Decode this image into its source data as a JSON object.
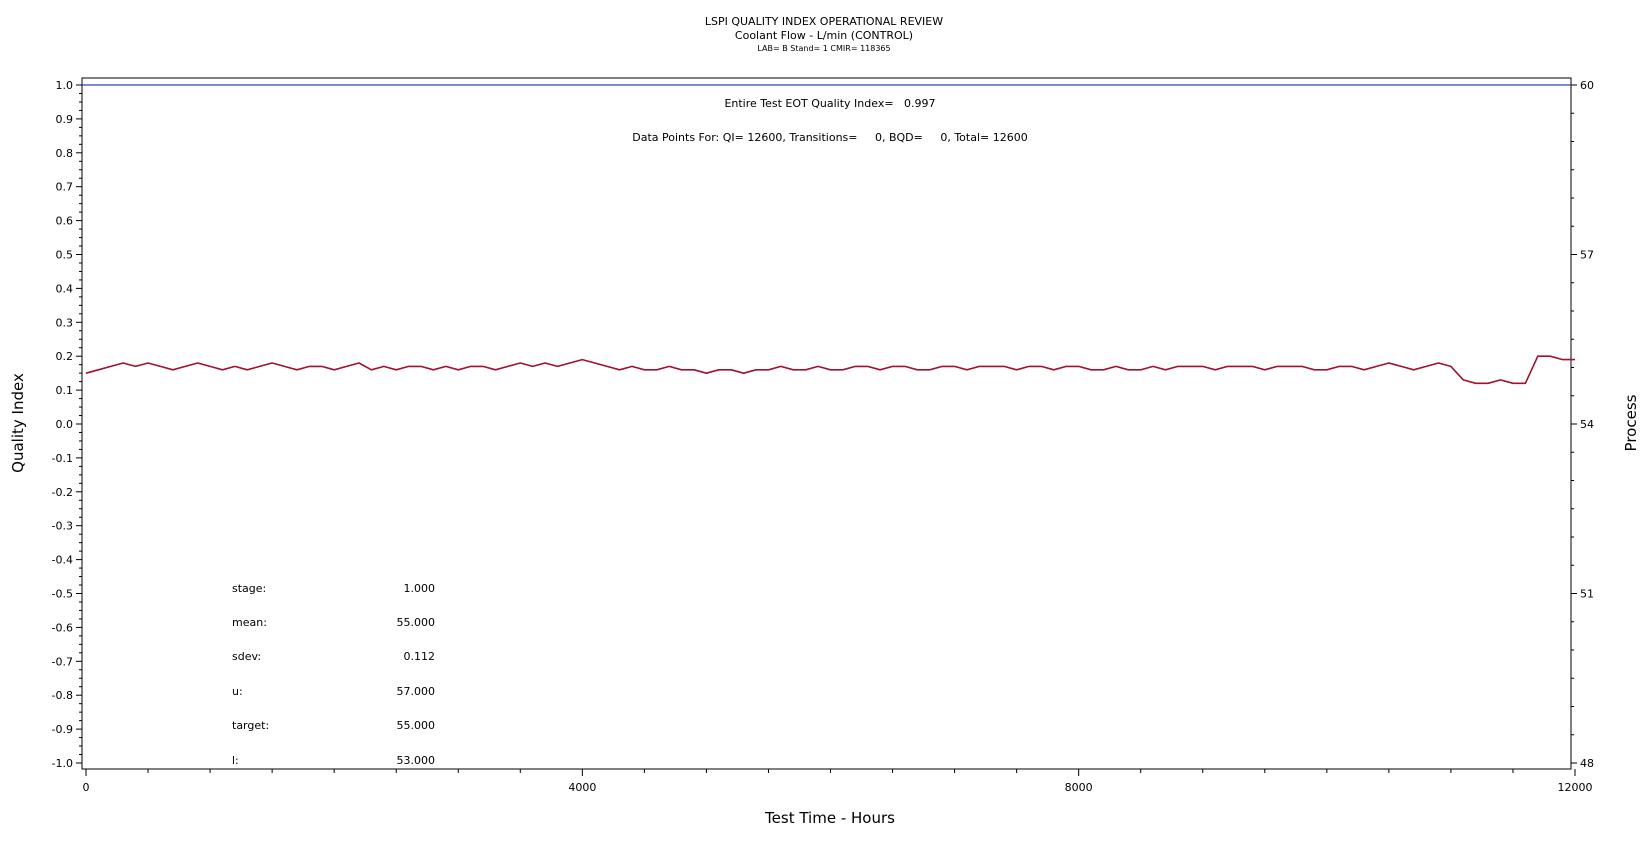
{
  "header": {
    "title": "LSPI QUALITY INDEX OPERATIONAL REVIEW",
    "subtitle": "Coolant Flow - L/min (CONTROL)",
    "info": "LAB= B Stand= 1 CMIR= 118365"
  },
  "annotations": {
    "quality_index": "Entire Test EOT Quality Index=   0.997",
    "data_points": "Data Points For: QI= 12600, Transitions=     0, BQD=     0, Total= 12600"
  },
  "stats": [
    {
      "label": "stage:",
      "value": "1.000"
    },
    {
      "label": "mean:",
      "value": "55.000"
    },
    {
      "label": "sdev:",
      "value": "0.112"
    },
    {
      "label": "u:",
      "value": "57.000"
    },
    {
      "label": "target:",
      "value": "55.000"
    },
    {
      "label": "l:",
      "value": "53.000"
    }
  ],
  "chart_data": {
    "type": "line",
    "xlabel": "Test Time - Hours",
    "ylabel": "Quality Index",
    "y2label": "Process",
    "xlim": [
      0,
      12000
    ],
    "ylim": [
      -1.0,
      1.0
    ],
    "y2lim": [
      48,
      60
    ],
    "xticks": [
      "0",
      "4000",
      "8000",
      "12000"
    ],
    "yticks": [
      "1.0",
      "0.9",
      "0.8",
      "0.7",
      "0.6",
      "0.5",
      "0.4",
      "0.3",
      "0.2",
      "0.1",
      "0.0",
      "-0.1",
      "-0.2",
      "-0.3",
      "-0.4",
      "-0.5",
      "-0.6",
      "-0.7",
      "-0.8",
      "-0.9",
      "-1.0"
    ],
    "y2ticks": [
      "60",
      "57",
      "54",
      "51",
      "48"
    ],
    "reference_line": {
      "y": 1.0,
      "color": "#3344aa"
    },
    "series": [
      {
        "color": "#a0122e",
        "x": [
          0,
          100,
          200,
          300,
          400,
          500,
          600,
          700,
          800,
          900,
          1000,
          1100,
          1200,
          1300,
          1400,
          1500,
          1600,
          1700,
          1800,
          1900,
          2000,
          2100,
          2200,
          2300,
          2400,
          2500,
          2600,
          2700,
          2800,
          2900,
          3000,
          3100,
          3200,
          3300,
          3400,
          3500,
          3600,
          3700,
          3800,
          3900,
          4000,
          4100,
          4200,
          4300,
          4400,
          4500,
          4600,
          4700,
          4800,
          4900,
          5000,
          5100,
          5200,
          5300,
          5400,
          5500,
          5600,
          5700,
          5800,
          5900,
          6000,
          6100,
          6200,
          6300,
          6400,
          6500,
          6600,
          6700,
          6800,
          6900,
          7000,
          7100,
          7200,
          7300,
          7400,
          7500,
          7600,
          7700,
          7800,
          7900,
          8000,
          8100,
          8200,
          8300,
          8400,
          8500,
          8600,
          8700,
          8800,
          8900,
          9000,
          9100,
          9200,
          9300,
          9400,
          9500,
          9600,
          9700,
          9800,
          9900,
          10000,
          10100,
          10200,
          10300,
          10400,
          10500,
          10600,
          10700,
          10800,
          10900,
          11000,
          11100,
          11200,
          11300,
          11400,
          11500,
          11600,
          11700,
          11800,
          11900,
          12000
        ],
        "y": [
          0.15,
          0.16,
          0.17,
          0.18,
          0.17,
          0.18,
          0.17,
          0.16,
          0.17,
          0.18,
          0.17,
          0.16,
          0.17,
          0.16,
          0.17,
          0.18,
          0.17,
          0.16,
          0.17,
          0.17,
          0.16,
          0.17,
          0.18,
          0.16,
          0.17,
          0.16,
          0.17,
          0.17,
          0.16,
          0.17,
          0.16,
          0.17,
          0.17,
          0.16,
          0.17,
          0.18,
          0.17,
          0.18,
          0.17,
          0.18,
          0.19,
          0.18,
          0.17,
          0.16,
          0.17,
          0.16,
          0.16,
          0.17,
          0.16,
          0.16,
          0.15,
          0.16,
          0.16,
          0.15,
          0.16,
          0.16,
          0.17,
          0.16,
          0.16,
          0.17,
          0.16,
          0.16,
          0.17,
          0.17,
          0.16,
          0.17,
          0.17,
          0.16,
          0.16,
          0.17,
          0.17,
          0.16,
          0.17,
          0.17,
          0.17,
          0.16,
          0.17,
          0.17,
          0.16,
          0.17,
          0.17,
          0.16,
          0.16,
          0.17,
          0.16,
          0.16,
          0.17,
          0.16,
          0.17,
          0.17,
          0.17,
          0.16,
          0.17,
          0.17,
          0.17,
          0.16,
          0.17,
          0.17,
          0.17,
          0.16,
          0.16,
          0.17,
          0.17,
          0.16,
          0.17,
          0.18,
          0.17,
          0.16,
          0.17,
          0.18,
          0.17,
          0.13,
          0.12,
          0.12,
          0.13,
          0.12,
          0.12,
          0.2,
          0.2,
          0.19,
          0.19
        ]
      }
    ]
  }
}
